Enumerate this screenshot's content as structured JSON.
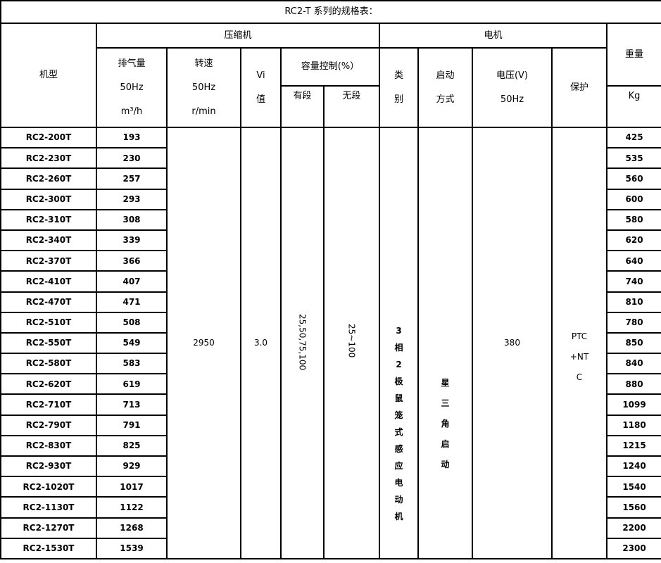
{
  "title": "RC2-T 系列的规格表：",
  "header": {
    "model": "机型",
    "compressor": "压缩机",
    "motor": "电机",
    "weight": "重量",
    "weight_unit": "Kg",
    "displacement": [
      "排气量",
      "50Hz",
      "m³/h"
    ],
    "speed": [
      "转速",
      "50Hz",
      "r/min"
    ],
    "vi": [
      "Vi",
      "值"
    ],
    "capacity": "容量控制(%）",
    "stepped": "有段",
    "stepless": "无段",
    "type": [
      "类",
      "别"
    ],
    "start": [
      "启动",
      "方式"
    ],
    "voltage": [
      "电压(V)",
      "50Hz"
    ],
    "protection": "保护"
  },
  "merged": {
    "speed": "2950",
    "vi": "3.0",
    "stepped": "25,50,75,100",
    "stepless": "25~100",
    "motor_type": "3相2极鼠笼式感应电动机",
    "start": "星三角启动",
    "voltage": "380",
    "protection": "PTC+NTC"
  },
  "rows": [
    {
      "model": "RC2-200T",
      "disp": "193",
      "weight": "425"
    },
    {
      "model": "RC2-230T",
      "disp": "230",
      "weight": "535"
    },
    {
      "model": "RC2-260T",
      "disp": "257",
      "weight": "560"
    },
    {
      "model": "RC2-300T",
      "disp": "293",
      "weight": "600"
    },
    {
      "model": "RC2-310T",
      "disp": "308",
      "weight": "580"
    },
    {
      "model": "RC2-340T",
      "disp": "339",
      "weight": "620"
    },
    {
      "model": "RC2-370T",
      "disp": "366",
      "weight": "640"
    },
    {
      "model": "RC2-410T",
      "disp": "407",
      "weight": "740"
    },
    {
      "model": "RC2-470T",
      "disp": "471",
      "weight": "810"
    },
    {
      "model": "RC2-510T",
      "disp": "508",
      "weight": "780"
    },
    {
      "model": "RC2-550T",
      "disp": "549",
      "weight": "850"
    },
    {
      "model": "RC2-580T",
      "disp": "583",
      "weight": "840"
    },
    {
      "model": "RC2-620T",
      "disp": "619",
      "weight": "880"
    },
    {
      "model": "RC2-710T",
      "disp": "713",
      "weight": "1099"
    },
    {
      "model": "RC2-790T",
      "disp": "791",
      "weight": "1180"
    },
    {
      "model": "RC2-830T",
      "disp": "825",
      "weight": "1215"
    },
    {
      "model": "RC2-930T",
      "disp": "929",
      "weight": "1240"
    },
    {
      "model": "RC2-1020T",
      "disp": "1017",
      "weight": "1540"
    },
    {
      "model": "RC2-1130T",
      "disp": "1122",
      "weight": "1560"
    },
    {
      "model": "RC2-1270T",
      "disp": "1268",
      "weight": "2200"
    },
    {
      "model": "RC2-1530T",
      "disp": "1539",
      "weight": "2300"
    }
  ]
}
